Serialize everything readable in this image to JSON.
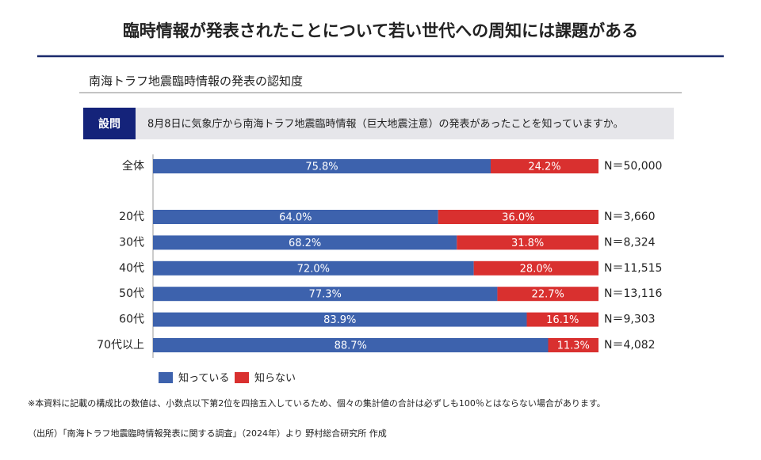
{
  "chart_data": {
    "type": "stacked_bar_horizontal",
    "title": "臨時情報が発表されたことについて若い世代への周知には課題がある",
    "subtitle": "南海トラフ地震臨時情報の発表の認知度",
    "question_label": "設問",
    "question": "8月8日に気象庁から南海トラフ地震臨時情報（巨大地震注意）の発表があったことを知っていますか。",
    "categories": [
      "全体",
      "20代",
      "30代",
      "40代",
      "50代",
      "60代",
      "70代以上"
    ],
    "xlim": [
      0,
      100
    ],
    "series": [
      {
        "name": "知っている",
        "color": "#3d62ad",
        "values": [
          75.8,
          64.0,
          68.2,
          72.0,
          77.3,
          83.9,
          88.7
        ],
        "value_labels": [
          "75.8%",
          "64.0%",
          "68.2%",
          "72.0%",
          "77.3%",
          "83.9%",
          "88.7%"
        ]
      },
      {
        "name": "知らない",
        "color": "#d9302f",
        "values": [
          24.2,
          36.0,
          31.8,
          28.0,
          22.7,
          16.1,
          11.3
        ],
        "value_labels": [
          "24.2%",
          "36.0%",
          "31.8%",
          "28.0%",
          "22.7%",
          "16.1%",
          "11.3%"
        ]
      }
    ],
    "n_labels": [
      "N＝50,000",
      "N＝3,660",
      "N＝8,324",
      "N＝11,515",
      "N＝13,116",
      "N＝9,303",
      "N＝4,082"
    ],
    "footnote": "※本資料に記載の構成比の数値は、小数点以下第2位を四捨五入しているため、個々の集計値の合計は必ずしも100％とはならない場合があります。",
    "source": "（出所）「南海トラフ地震臨時情報発表に関する調査」（2024年）より 野村総合研究所 作成"
  }
}
